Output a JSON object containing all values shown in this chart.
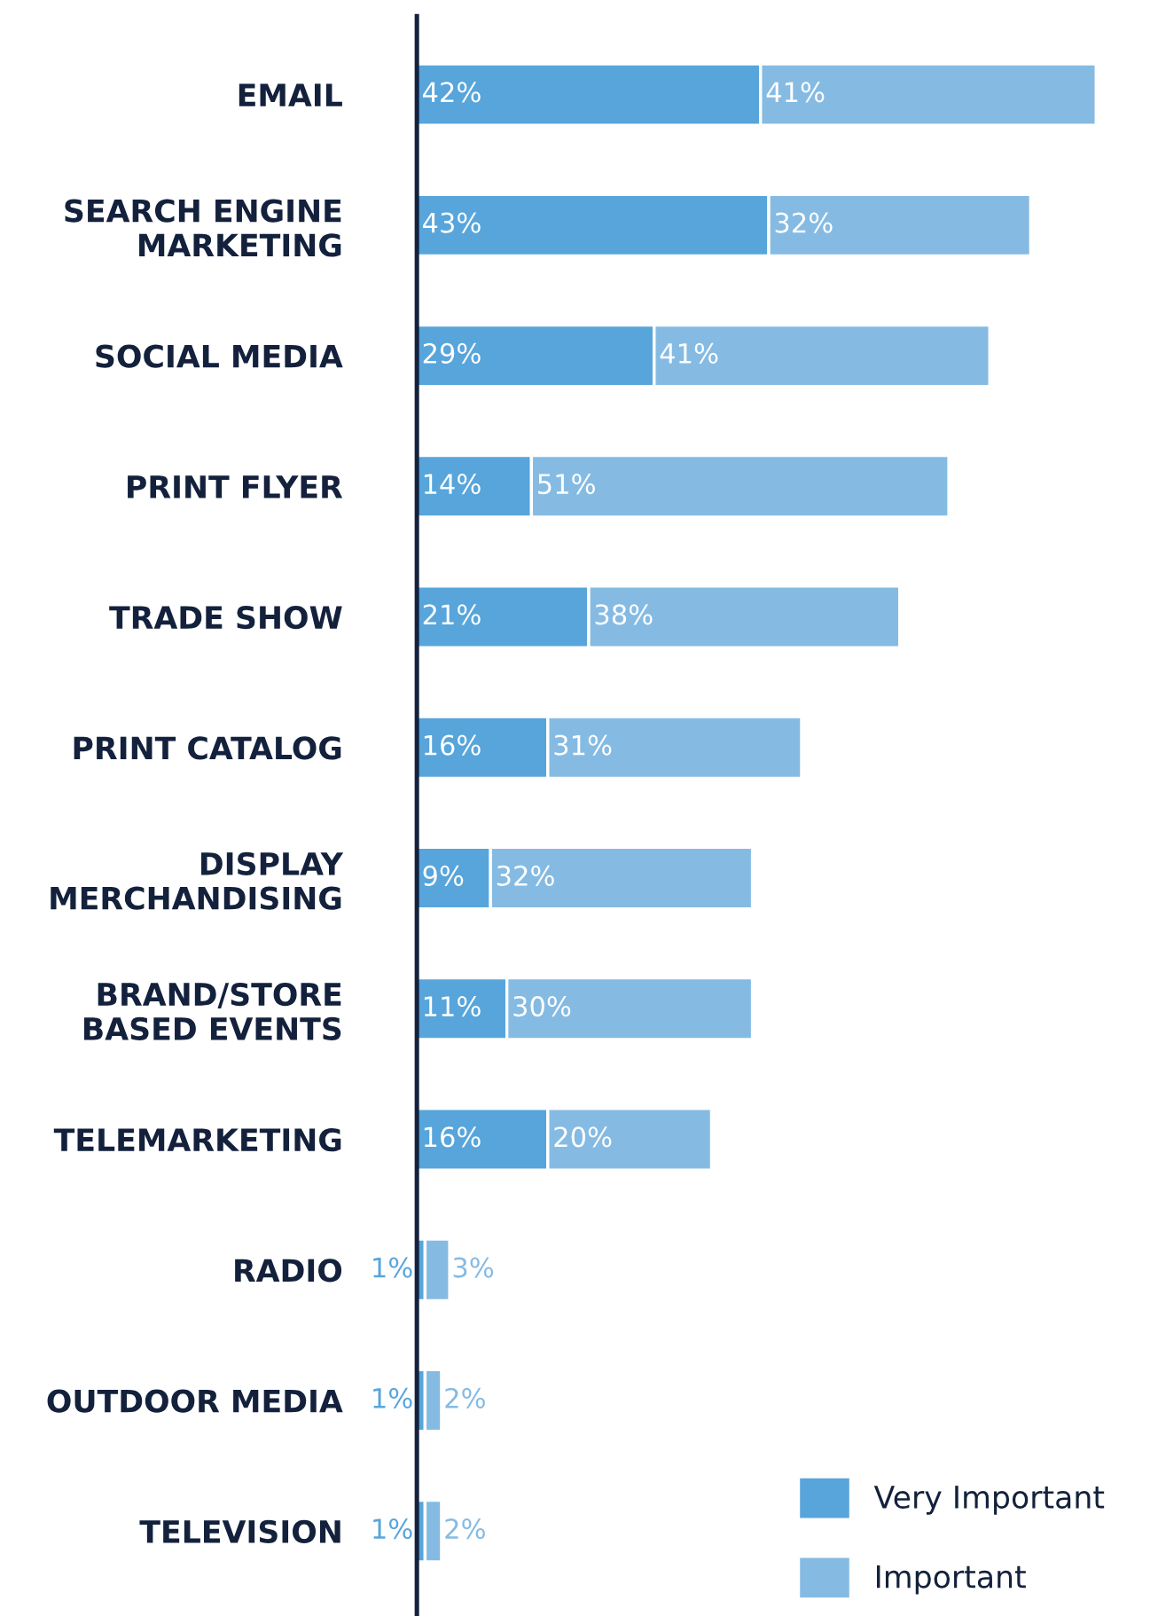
{
  "chart_data": {
    "type": "bar",
    "orientation": "horizontal",
    "stacked": true,
    "legend": "bottom right",
    "grid": false,
    "categories": [
      "EMAIL",
      "SEARCH ENGINE\nMARKETING",
      "SOCIAL MEDIA",
      "PRINT FLYER",
      "TRADE SHOW",
      "PRINT CATALOG",
      "DISPLAY\nMERCHANDISING",
      "BRAND/STORE\nBASED EVENTS",
      "TELEMARKETING",
      "RADIO",
      "OUTDOOR MEDIA",
      "TELEVISION"
    ],
    "series": [
      {
        "name": "Very Important",
        "color": "#57a5db",
        "values": [
          42,
          43,
          29,
          14,
          21,
          16,
          9,
          11,
          16,
          1,
          1,
          1
        ],
        "value_labels": [
          "42%",
          "43%",
          "29%",
          "14%",
          "21%",
          "16%",
          "9%",
          "11%",
          "16%",
          "1%",
          "1%",
          "1%"
        ]
      },
      {
        "name": "Important",
        "color": "#85bbe3",
        "values": [
          41,
          32,
          41,
          51,
          38,
          31,
          32,
          30,
          20,
          3,
          2,
          2
        ],
        "value_labels": [
          "41%",
          "32%",
          "41%",
          "51%",
          "38%",
          "31%",
          "32%",
          "30%",
          "20%",
          "3%",
          "2%",
          "2%"
        ]
      }
    ]
  }
}
